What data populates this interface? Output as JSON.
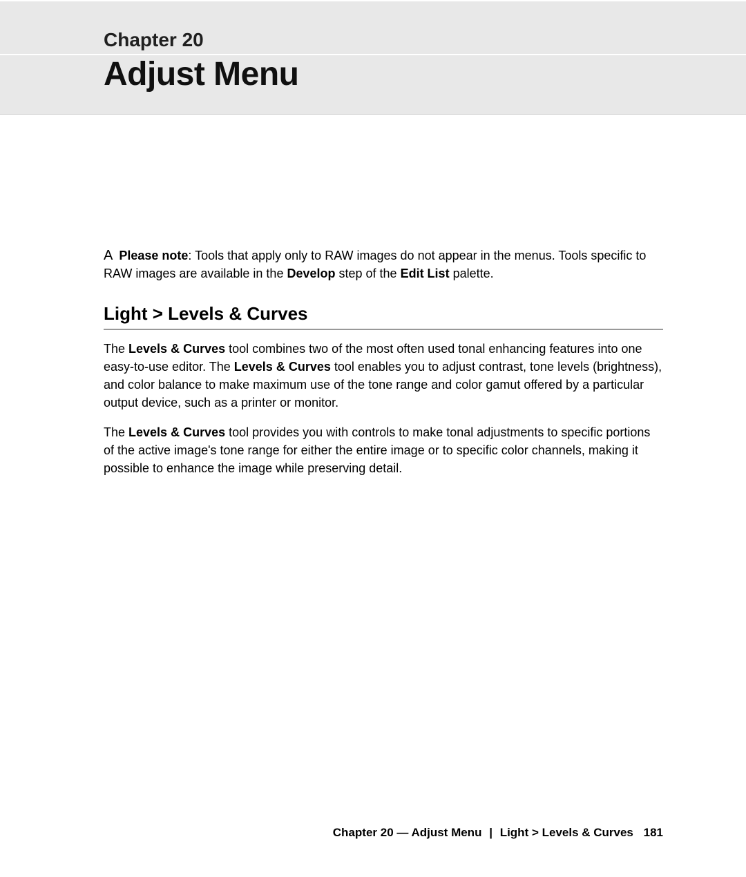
{
  "header": {
    "chapter_label": "Chapter 20",
    "chapter_title": "Adjust Menu"
  },
  "note": {
    "symbol": "A",
    "label": "Please note",
    "text_before": ": Tools that apply only to RAW images do not appear in the menus. Tools specific to RAW images are available in the ",
    "bold1": "Develop",
    "text_mid": " step of the ",
    "bold2": "Edit List",
    "text_after": " palette."
  },
  "section": {
    "heading": "Light > Levels & Curves"
  },
  "para1": {
    "t1": "The ",
    "b1": "Levels & Curves",
    "t2": " tool combines two of the most often used tonal enhancing features into one easy-to-use editor. The ",
    "b2": "Levels & Curves",
    "t3": " tool enables you to adjust contrast, tone levels (brightness), and color balance to make maximum use of the tone range and color gamut offered by a particular output device, such as a printer or monitor."
  },
  "para2": {
    "t1": "The ",
    "b1": "Levels & Curves",
    "t2": " tool provides you with controls to make tonal adjustments to specific portions of the active image's tone range for either the entire image or to specific color channels, making it possible to enhance the image while preserving detail."
  },
  "footer": {
    "chapter": "Chapter 20 — Adjust Menu",
    "section": "Light > Levels & Curves",
    "page": "181"
  },
  "colors": {
    "header_bg": "#e8e8e8",
    "text": "#000000",
    "rule": "#999999"
  }
}
